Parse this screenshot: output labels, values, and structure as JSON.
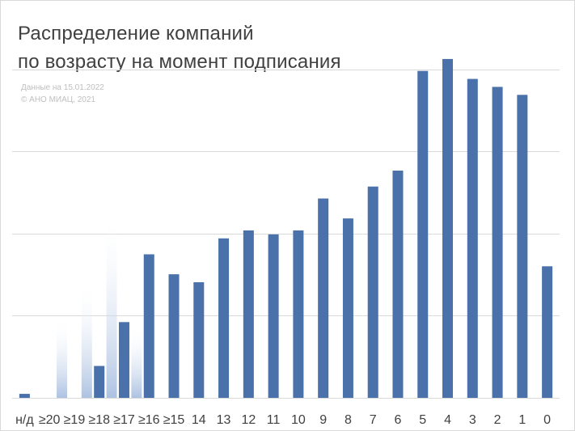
{
  "chart_data": {
    "type": "bar",
    "title_line1": "Распределение компаний",
    "title_line2": "по возрасту на момент подписания",
    "note_line1": "Данные на 15.01.2022",
    "note_line2": "© АНО МИАЦ, 2021",
    "xlabel": "",
    "ylabel": "",
    "ylim": [
      0,
      43
    ],
    "grid": true,
    "legend": "none",
    "bar_color": "#4a71a9",
    "categories": [
      "н/д",
      "≥20",
      "≥19",
      "≥18",
      "≥17",
      "≥16",
      "≥15",
      "14",
      "13",
      "12",
      "11",
      "10",
      "9",
      "8",
      "7",
      "6",
      "5",
      "4",
      "3",
      "2",
      "1",
      "0"
    ],
    "values": [
      0.5,
      0,
      0,
      4,
      9.5,
      18,
      15.5,
      14.5,
      20,
      21,
      20.5,
      21,
      25,
      22.5,
      26.5,
      28.5,
      41,
      42.5,
      40,
      39,
      38,
      16.5
    ],
    "ghost_bars": [
      {
        "category": "≥19",
        "value": 10
      },
      {
        "category": "≥18",
        "value": 14.5
      },
      {
        "category": "≥17",
        "value": 23
      },
      {
        "category": "≥16",
        "value": 9
      }
    ],
    "ghost_color": "#c5d4ea"
  }
}
